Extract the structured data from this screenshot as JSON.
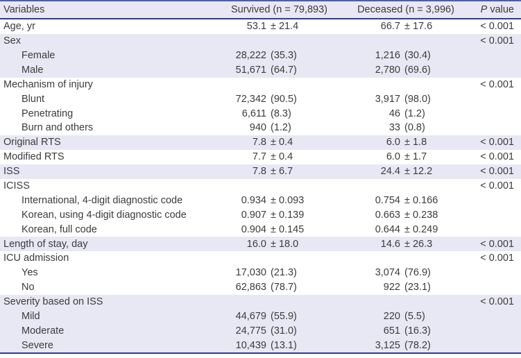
{
  "colors": {
    "stripe_bg": "#e8e8f4",
    "rule_top": "#4e5dab",
    "rule_dark": "#2e3d94",
    "text": "#3b3b3b"
  },
  "table": {
    "header": {
      "variables": "Variables",
      "survived": "Survived (n = 79,893)",
      "deceased": "Deceased (n = 3,996)",
      "p_italic": "P",
      "p_rest": " value"
    },
    "rows": [
      {
        "label": "Age, yr",
        "indent": 0,
        "shaded": false,
        "survived": [
          "53.1",
          "± 21.4"
        ],
        "deceased": [
          "66.7",
          "± 17.6"
        ],
        "p": "< 0.001"
      },
      {
        "label": "Sex",
        "indent": 0,
        "shaded": true,
        "p": "< 0.001"
      },
      {
        "label": "Female",
        "indent": 1,
        "shaded": true,
        "survived": [
          "28,222",
          "(35.3)"
        ],
        "deceased": [
          "1,216",
          "(30.4)"
        ]
      },
      {
        "label": "Male",
        "indent": 1,
        "shaded": true,
        "survived": [
          "51,671",
          "(64.7)"
        ],
        "deceased": [
          "2,780",
          "(69.6)"
        ]
      },
      {
        "label": "Mechanism of injury",
        "indent": 0,
        "shaded": false,
        "p": "< 0.001"
      },
      {
        "label": "Blunt",
        "indent": 1,
        "shaded": false,
        "survived": [
          "72,342",
          "(90.5)"
        ],
        "deceased": [
          "3,917",
          "(98.0)"
        ]
      },
      {
        "label": "Penetrating",
        "indent": 1,
        "shaded": false,
        "survived": [
          "6,611",
          "(8.3)"
        ],
        "deceased": [
          "46",
          "(1.2)"
        ]
      },
      {
        "label": "Burn and others",
        "indent": 1,
        "shaded": false,
        "survived": [
          "940",
          "(1.2)"
        ],
        "deceased": [
          "33",
          "(0.8)"
        ]
      },
      {
        "label": "Original RTS",
        "indent": 0,
        "shaded": true,
        "survived": [
          "7.8",
          "± 0.4"
        ],
        "deceased": [
          "6.0",
          "± 1.8"
        ],
        "p": "< 0.001"
      },
      {
        "label": "Modified RTS",
        "indent": 0,
        "shaded": false,
        "survived": [
          "7.7",
          "± 0.4"
        ],
        "deceased": [
          "6.0",
          "± 1.7"
        ],
        "p": "< 0.001"
      },
      {
        "label": "ISS",
        "indent": 0,
        "shaded": true,
        "survived": [
          "7.8",
          "± 6.7"
        ],
        "deceased": [
          "24.4",
          "± 12.2"
        ],
        "p": "< 0.001"
      },
      {
        "label": "ICISS",
        "indent": 0,
        "shaded": false,
        "p": "< 0.001"
      },
      {
        "label": "International, 4-digit diagnostic code",
        "indent": 1,
        "shaded": false,
        "survived": [
          "0.934",
          "± 0.093"
        ],
        "deceased": [
          "0.754",
          "± 0.166"
        ]
      },
      {
        "label": "Korean, using 4-digit diagnostic code",
        "indent": 1,
        "shaded": false,
        "survived": [
          "0.907",
          "± 0.139"
        ],
        "deceased": [
          "0.663",
          "± 0.238"
        ]
      },
      {
        "label": "Korean, full code",
        "indent": 1,
        "shaded": false,
        "survived": [
          "0.904",
          "± 0.145"
        ],
        "deceased": [
          "0.644",
          "± 0.249"
        ]
      },
      {
        "label": "Length of stay, day",
        "indent": 0,
        "shaded": true,
        "survived": [
          "16.0",
          "± 18.0"
        ],
        "deceased": [
          "14.6",
          "± 26.3"
        ],
        "p": "< 0.001"
      },
      {
        "label": "ICU admission",
        "indent": 0,
        "shaded": false,
        "p": "< 0.001"
      },
      {
        "label": "Yes",
        "indent": 1,
        "shaded": false,
        "survived": [
          "17,030",
          "(21.3)"
        ],
        "deceased": [
          "3,074",
          "(76.9)"
        ]
      },
      {
        "label": "No",
        "indent": 1,
        "shaded": false,
        "survived": [
          "62,863",
          "(78.7)"
        ],
        "deceased": [
          "922",
          "(23.1)"
        ]
      },
      {
        "label": "Severity based on ISS",
        "indent": 0,
        "shaded": true,
        "p": "< 0.001"
      },
      {
        "label": "Mild",
        "indent": 1,
        "shaded": true,
        "survived": [
          "44,679",
          "(55.9)"
        ],
        "deceased": [
          "220",
          "(5.5)"
        ]
      },
      {
        "label": "Moderate",
        "indent": 1,
        "shaded": true,
        "survived": [
          "24,775",
          "(31.0)"
        ],
        "deceased": [
          "651",
          "(16.3)"
        ]
      },
      {
        "label": "Severe",
        "indent": 1,
        "shaded": true,
        "survived": [
          "10,439",
          "(13.1)"
        ],
        "deceased": [
          "3,125",
          "(78.2)"
        ]
      }
    ]
  }
}
